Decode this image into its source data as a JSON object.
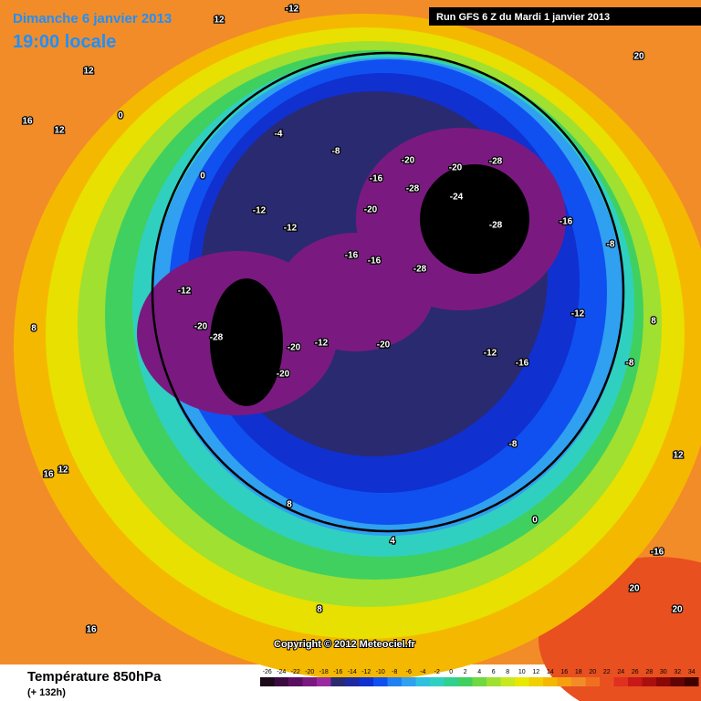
{
  "header": {
    "date": "Dimanche 6 janvier 2013",
    "time": "19:00 locale",
    "run": "Run GFS 6 Z du Mardi 1 janvier 2013"
  },
  "footer": {
    "title": "Température 850hPa",
    "lead": "(+ 132h)",
    "copyright": "Copyright © 2012 Meteociel.fr"
  },
  "legend": {
    "ticks": [
      -26,
      -24,
      -22,
      -20,
      -18,
      -16,
      -14,
      -12,
      -10,
      -8,
      -6,
      -4,
      -2,
      0,
      2,
      4,
      6,
      8,
      10,
      12,
      14,
      16,
      18,
      20,
      22,
      24,
      26,
      28,
      30,
      32,
      34
    ],
    "colors": [
      "#1a0a1a",
      "#3a0a40",
      "#5a1060",
      "#7a1a80",
      "#9a2aa0",
      "#2a2a70",
      "#202aa0",
      "#1030d0",
      "#1050f0",
      "#2080f0",
      "#30a0f0",
      "#30c0e0",
      "#30d0c0",
      "#30d090",
      "#40d060",
      "#70d840",
      "#a0e030",
      "#c8e820",
      "#e8e800",
      "#f0d000",
      "#f5b800",
      "#f5a010",
      "#f28c28",
      "#f07020",
      "#e85020",
      "#e03020",
      "#c81818",
      "#a81010",
      "#880808",
      "#600404",
      "#400000"
    ]
  },
  "labels": [
    12,
    -12,
    20,
    12,
    16,
    12,
    0,
    0,
    -4,
    -8,
    -20,
    -20,
    -28,
    -28,
    -24,
    -16,
    -28,
    -28,
    -12,
    -12,
    -20,
    -16,
    -16,
    -12,
    -20,
    -28,
    -20,
    -12,
    -20,
    -20,
    -12,
    -16,
    -16,
    -12,
    -8,
    -8,
    -8,
    8,
    8,
    8,
    16,
    -16,
    20,
    20,
    12,
    0,
    4,
    8,
    16,
    12
  ]
}
